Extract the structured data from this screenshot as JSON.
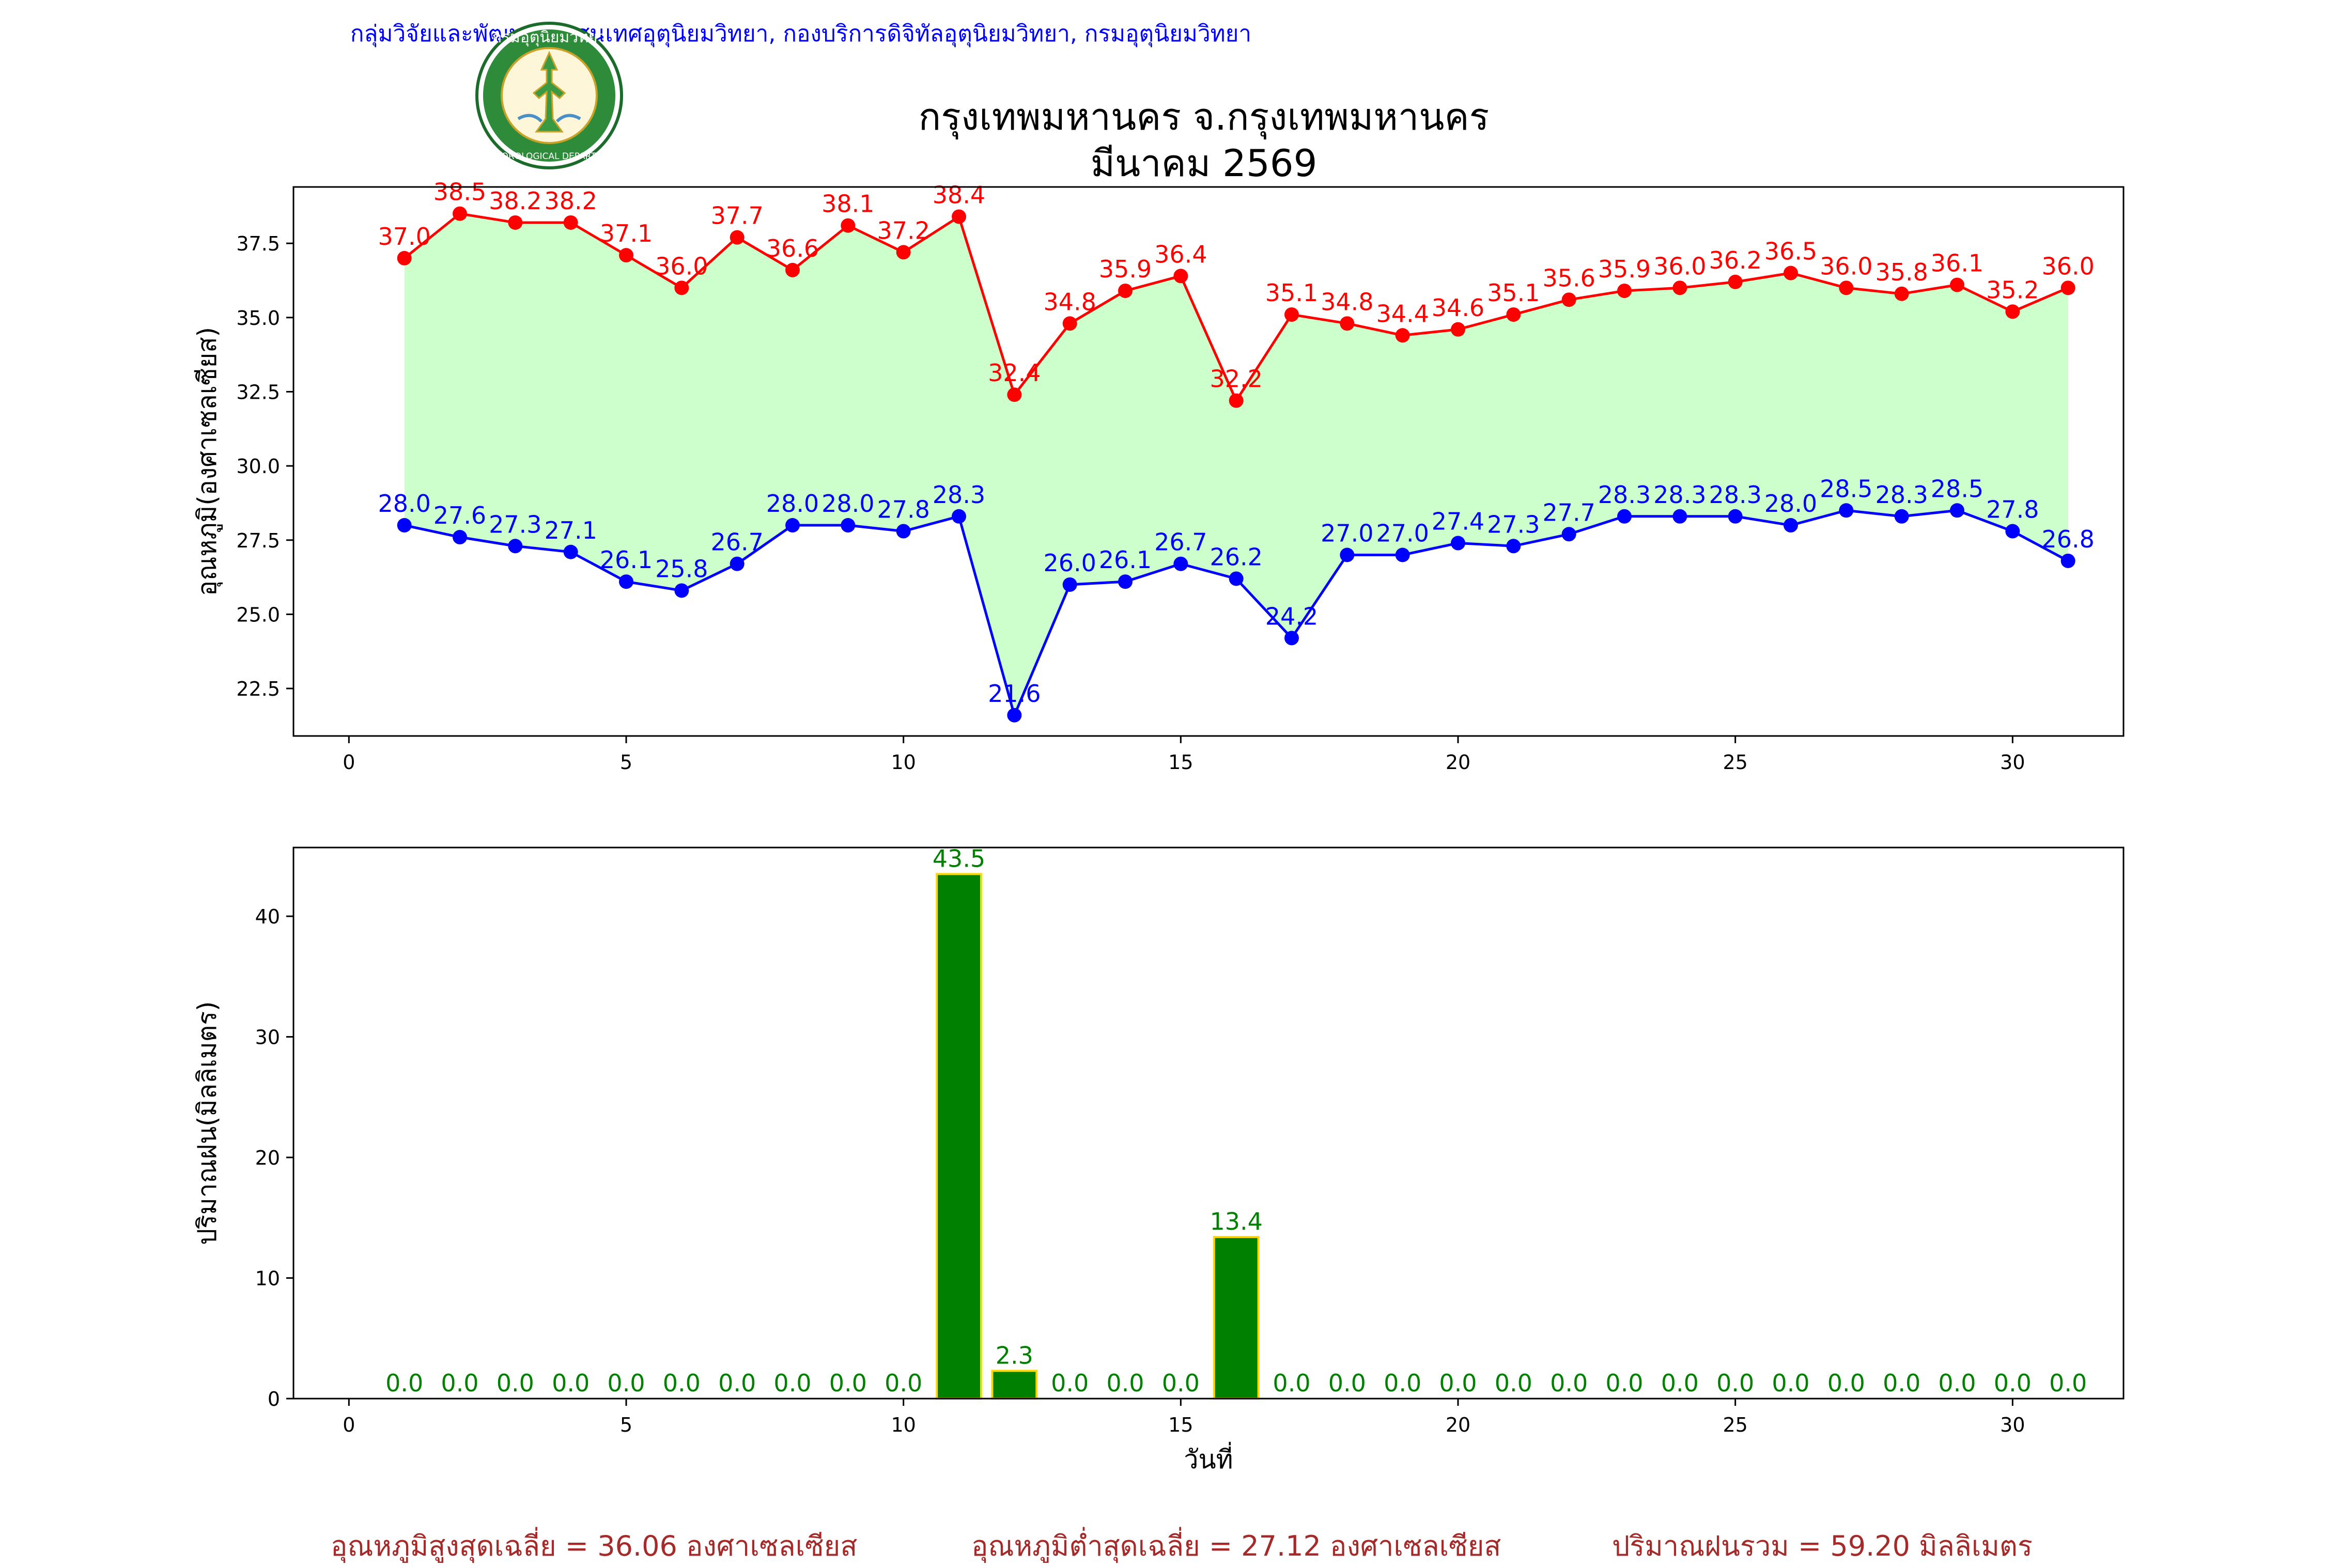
{
  "header": {
    "agency": "กลุ่มวิจัยและพัฒนาสารสนเทศอุตุนิยมวิทยา, กองบริการดิจิทัลอุตุนิยมวิทยา, กรมอุตุนิยมวิทยา",
    "title": "กรุงเทพมหานคร จ.กรุงเทพมหานคร",
    "subtitle": "มีนาคม 2569",
    "logo_text": "กรมอุตุนิยมวิทยา",
    "logo_text_en": "METEOROLOGICAL DEPARTMENT"
  },
  "colors": {
    "tmax": "#ff0000",
    "tmin": "#0000ff",
    "fill": "#ccffcc",
    "rain_bar": "#008000",
    "rain_edge": "#ffd700",
    "rain_label": "#008000",
    "summary": "#a52a2a"
  },
  "chart_data": [
    {
      "type": "line",
      "ylabel": "อุณหภูมิ(องศาเซลเซียส)",
      "xlim": [
        -1,
        32
      ],
      "ylim": [
        20.9,
        39.4
      ],
      "xticks": [
        0,
        5,
        10,
        15,
        20,
        25,
        30
      ],
      "yticks": [
        22.5,
        25.0,
        27.5,
        30.0,
        32.5,
        35.0,
        37.5
      ],
      "x": [
        1,
        2,
        3,
        4,
        5,
        6,
        7,
        8,
        9,
        10,
        11,
        12,
        13,
        14,
        15,
        16,
        17,
        18,
        19,
        20,
        21,
        22,
        23,
        24,
        25,
        26,
        27,
        28,
        29,
        30,
        31
      ],
      "series": [
        {
          "values": [
            37.0,
            38.5,
            38.2,
            38.2,
            37.1,
            36.0,
            37.7,
            36.6,
            38.1,
            37.2,
            38.4,
            32.4,
            34.8,
            35.9,
            36.4,
            32.2,
            35.1,
            34.8,
            34.4,
            34.6,
            35.1,
            35.6,
            35.9,
            36.0,
            36.2,
            36.5,
            36.0,
            35.8,
            36.1,
            35.2,
            36.0
          ]
        },
        {
          "values": [
            28.0,
            27.6,
            27.3,
            27.1,
            26.1,
            25.8,
            26.7,
            28.0,
            28.0,
            27.8,
            28.3,
            21.6,
            26.0,
            26.1,
            26.7,
            26.2,
            24.2,
            27.0,
            27.0,
            27.4,
            27.3,
            27.7,
            28.3,
            28.3,
            28.3,
            28.0,
            28.5,
            28.3,
            28.5,
            27.8,
            26.8
          ]
        }
      ]
    },
    {
      "type": "bar",
      "ylabel": "ปริมาณฝน(มิลลิเมตร)",
      "xlabel": "วันที่",
      "xlim": [
        -1,
        32
      ],
      "ylim": [
        0,
        45.7
      ],
      "xticks": [
        0,
        5,
        10,
        15,
        20,
        25,
        30
      ],
      "yticks": [
        0,
        10,
        20,
        30,
        40
      ],
      "x": [
        1,
        2,
        3,
        4,
        5,
        6,
        7,
        8,
        9,
        10,
        11,
        12,
        13,
        14,
        15,
        16,
        17,
        18,
        19,
        20,
        21,
        22,
        23,
        24,
        25,
        26,
        27,
        28,
        29,
        30,
        31
      ],
      "values": [
        0.0,
        0.0,
        0.0,
        0.0,
        0.0,
        0.0,
        0.0,
        0.0,
        0.0,
        0.0,
        43.5,
        2.3,
        0.0,
        0.0,
        0.0,
        13.4,
        0.0,
        0.0,
        0.0,
        0.0,
        0.0,
        0.0,
        0.0,
        0.0,
        0.0,
        0.0,
        0.0,
        0.0,
        0.0,
        0.0,
        0.0
      ]
    }
  ],
  "summary": {
    "tmax_avg": "อุณหภูมิสูงสุดเฉลี่ย = 36.06 องศาเซลเซียส",
    "tmin_avg": "อุณหภูมิต่ำสุดเฉลี่ย = 27.12 องศาเซลเซียส",
    "rain_total": "ปริมาณฝนรวม = 59.20 มิลลิเมตร"
  }
}
